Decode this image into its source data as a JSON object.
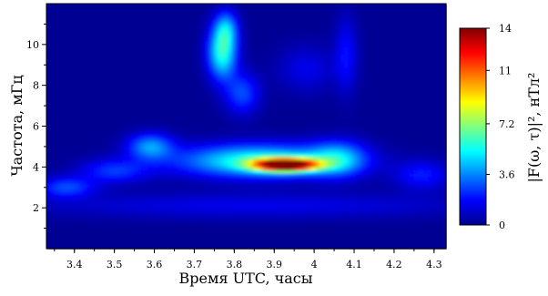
{
  "chart_data": {
    "type": "heatmap",
    "xlabel": "Время UTC, часы",
    "ylabel": "Частота, мГц",
    "colorbar_label": "|F(ω, τ)|², нТл²",
    "xlim": [
      3.33,
      4.33
    ],
    "ylim": [
      0,
      12
    ],
    "xticks": [
      "3.4",
      "3.5",
      "3.6",
      "3.7",
      "3.8",
      "3.9",
      "4",
      "4.1",
      "4.2",
      "4.3"
    ],
    "xtick_values": [
      3.4,
      3.5,
      3.6,
      3.7,
      3.8,
      3.9,
      4.0,
      4.1,
      4.2,
      4.3
    ],
    "yticks": [
      "2",
      "4",
      "6",
      "8",
      "10"
    ],
    "ytick_values": [
      2,
      4,
      6,
      8,
      10
    ],
    "colorbar": {
      "min": 0,
      "max": 14,
      "ticks": [
        "0",
        "3.6",
        "7.2",
        "11",
        "14"
      ],
      "tick_values": [
        0,
        3.6,
        7.2,
        11,
        14
      ],
      "colormap": "jet"
    },
    "features": [
      {
        "x": 3.93,
        "y": 4.1,
        "sx": 0.055,
        "sy": 0.22,
        "amp": 14
      },
      {
        "x": 3.86,
        "y": 4.3,
        "sx": 0.14,
        "sy": 0.55,
        "amp": 5.5
      },
      {
        "x": 4.06,
        "y": 4.4,
        "sx": 0.05,
        "sy": 0.6,
        "amp": 3.5
      },
      {
        "x": 3.77,
        "y": 9.6,
        "sx": 0.025,
        "sy": 0.9,
        "amp": 5.5
      },
      {
        "x": 3.78,
        "y": 10.8,
        "sx": 0.02,
        "sy": 0.6,
        "amp": 3
      },
      {
        "x": 3.82,
        "y": 7.6,
        "sx": 0.03,
        "sy": 0.7,
        "amp": 2.5
      },
      {
        "x": 3.59,
        "y": 5.0,
        "sx": 0.04,
        "sy": 0.45,
        "amp": 3.5
      },
      {
        "x": 3.5,
        "y": 3.8,
        "sx": 0.06,
        "sy": 0.4,
        "amp": 2.2
      },
      {
        "x": 3.38,
        "y": 3.0,
        "sx": 0.05,
        "sy": 0.35,
        "amp": 2.5
      },
      {
        "x": 4.27,
        "y": 3.6,
        "sx": 0.05,
        "sy": 0.5,
        "amp": 1.8
      },
      {
        "x": 3.98,
        "y": 8.8,
        "sx": 0.05,
        "sy": 0.8,
        "amp": 1.2
      },
      {
        "x": 4.08,
        "y": 9.5,
        "sx": 0.02,
        "sy": 1.3,
        "amp": 1.6
      },
      {
        "x": 3.85,
        "y": 2.1,
        "sx": 0.4,
        "sy": 0.45,
        "amp": 1.2
      }
    ],
    "background": 0.25,
    "grid": false
  }
}
